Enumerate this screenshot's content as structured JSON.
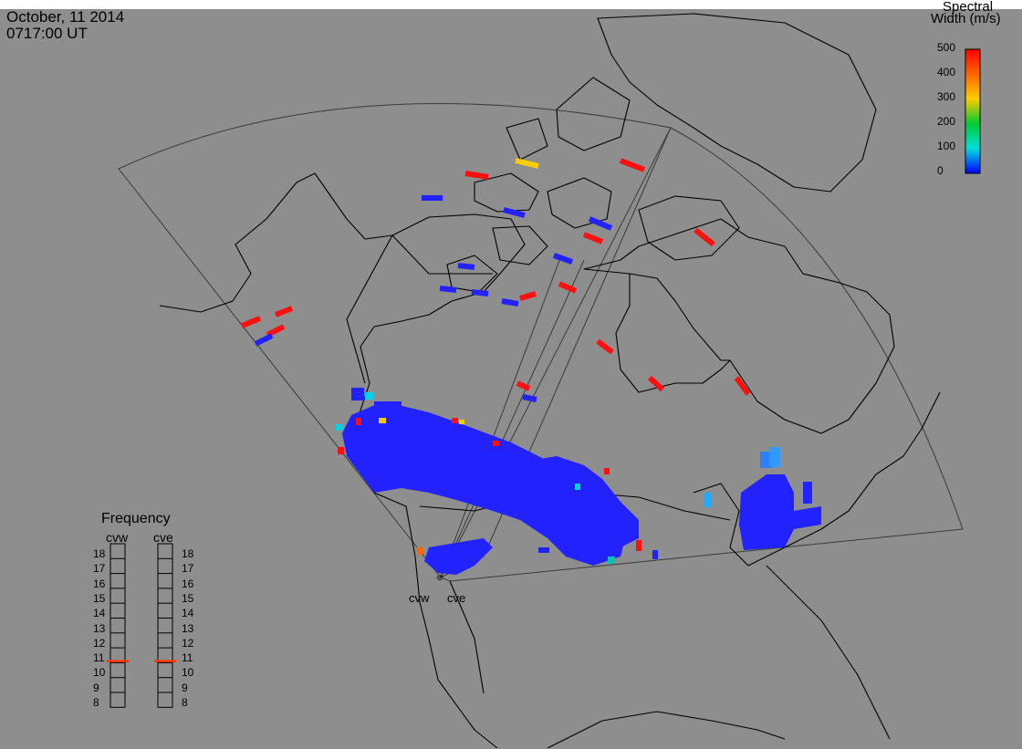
{
  "header": {
    "date": "October, 11 2014",
    "time": "0717:00 UT"
  },
  "colorbar": {
    "title_line1": "Spectral",
    "title_line2": "Width (m/s)",
    "ticks": [
      "500",
      "400",
      "300",
      "200",
      "100",
      "0"
    ],
    "colors": [
      "#ff0000",
      "#ff6600",
      "#ffcc00",
      "#00cc33",
      "#00dddd",
      "#0000ff"
    ]
  },
  "radars": {
    "west_code": "cvw",
    "east_code": "cve"
  },
  "frequency_panel": {
    "title": "Frequency",
    "left_label": "cvw",
    "right_label": "cve",
    "scale": [
      "18",
      "17",
      "16",
      "15",
      "14",
      "13",
      "12",
      "11",
      "10",
      "9",
      "8"
    ],
    "cvw_marker_mhz": 10.6,
    "cve_marker_mhz": 10.6,
    "marker_color": "#ff3300"
  },
  "scatter_colors": {
    "blue": "#2222ff",
    "red": "#ff1010",
    "yellow": "#ffcc00",
    "cyan": "#00d0e0",
    "teal": "#10c0b0"
  }
}
